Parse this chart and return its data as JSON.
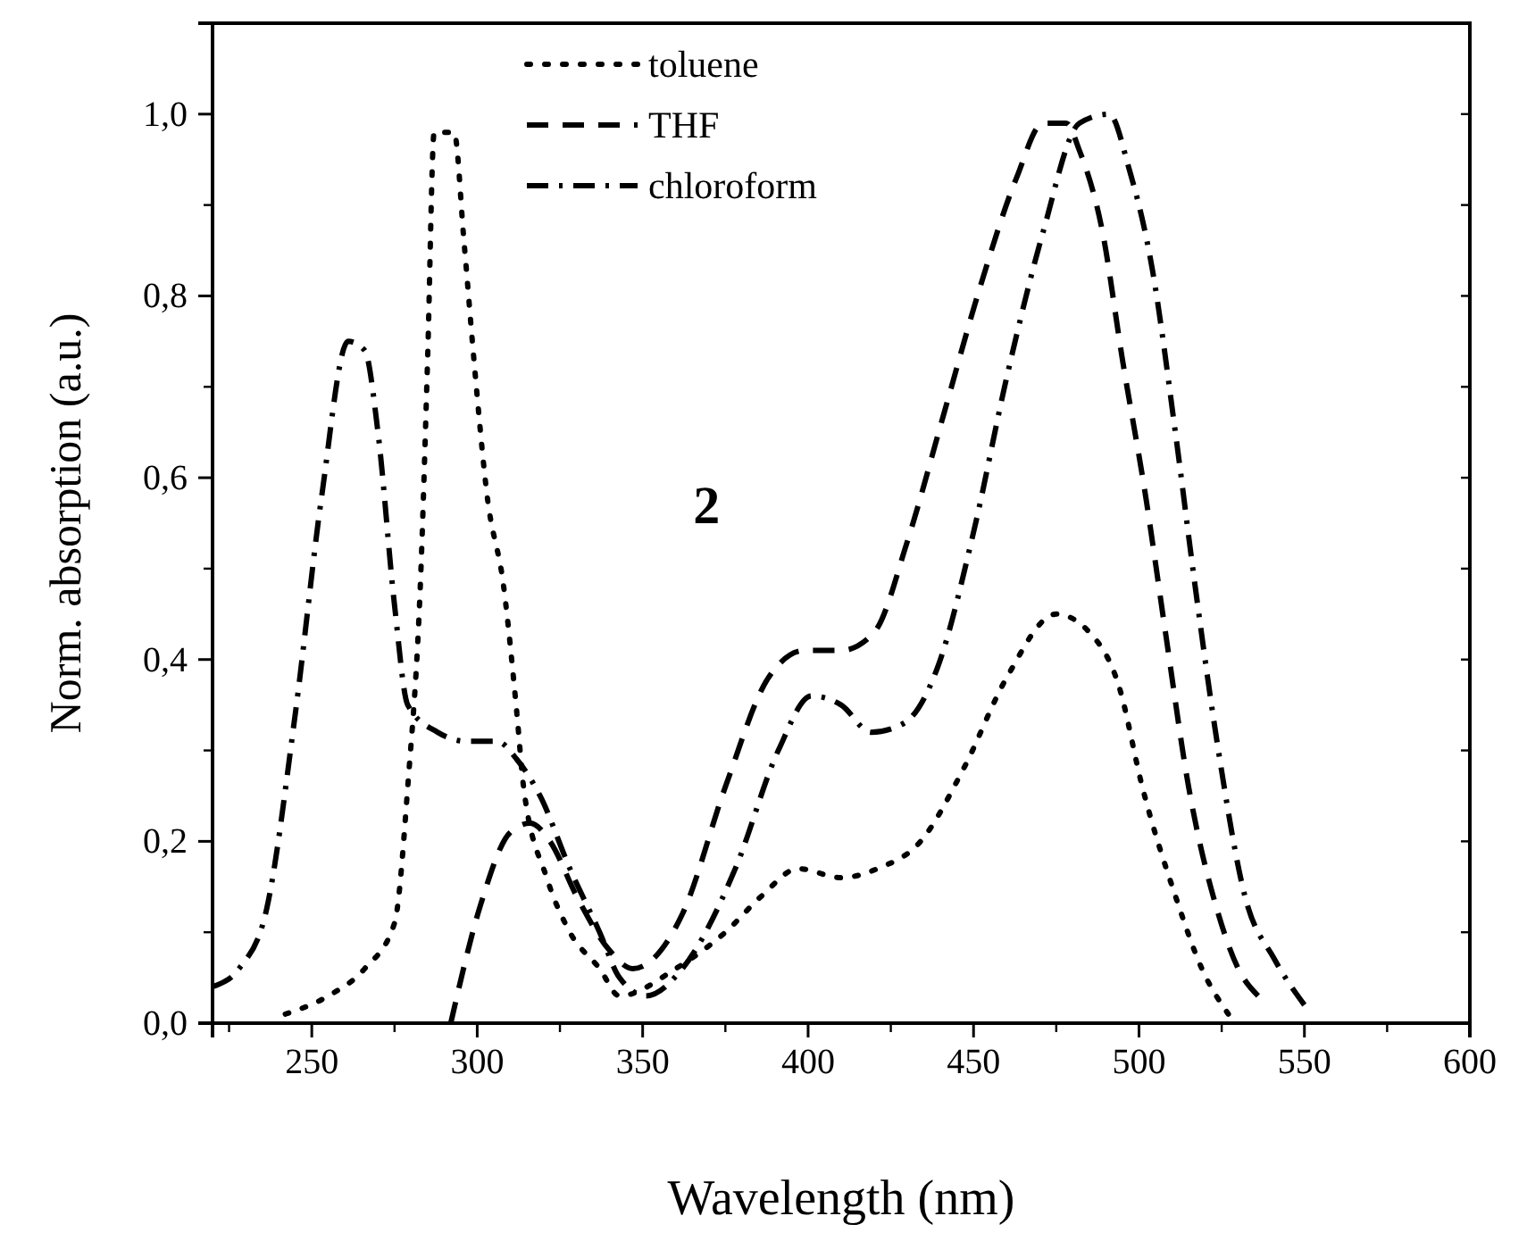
{
  "chart_data": {
    "type": "line",
    "xlabel": "Wavelength (nm)",
    "ylabel": "Norm. absorption (a.u.)",
    "xlim": [
      220,
      600
    ],
    "xticks": [
      250,
      300,
      350,
      400,
      450,
      500,
      550,
      600
    ],
    "ylim": [
      0,
      1.1
    ],
    "yticks": [
      {
        "value": 0,
        "label": "0,0"
      },
      {
        "value": 0.2,
        "label": "0,2"
      },
      {
        "value": 0.4,
        "label": "0,4"
      },
      {
        "value": 0.6,
        "label": "0,6"
      },
      {
        "value": 0.8,
        "label": "0,8"
      },
      {
        "value": 1,
        "label": "1,0"
      }
    ],
    "legend": "top left",
    "grid": false,
    "marker": "none",
    "annotations": [
      "2"
    ],
    "series": [
      {
        "name": "toluene",
        "color": "#000000",
        "line_style": "dotted",
        "x": [
          242,
          255,
          266,
          275,
          279,
          283,
          285,
          287,
          293,
          296,
          299,
          303,
          308,
          312,
          314,
          321,
          328,
          337,
          343,
          360,
          375,
          386,
          397,
          410,
          421,
          434,
          447,
          460,
          475,
          485,
          494,
          501,
          511,
          519,
          527
        ],
        "values": [
          0.01,
          0.03,
          0.06,
          0.11,
          0.26,
          0.5,
          0.73,
          0.98,
          0.98,
          0.86,
          0.73,
          0.58,
          0.48,
          0.34,
          0.26,
          0.16,
          0.1,
          0.06,
          0.03,
          0.06,
          0.1,
          0.14,
          0.17,
          0.16,
          0.17,
          0.2,
          0.28,
          0.38,
          0.45,
          0.43,
          0.37,
          0.26,
          0.14,
          0.06,
          0.01
        ]
      },
      {
        "name": "THF",
        "color": "#000000",
        "line_style": "dashed",
        "x": [
          292,
          301,
          310,
          316,
          322,
          330,
          340,
          347,
          362,
          375,
          388,
          399,
          410,
          420,
          430,
          441,
          452,
          463,
          471,
          478,
          482,
          489,
          495,
          502,
          508,
          515,
          524,
          530,
          536
        ],
        "values": [
          0,
          0.13,
          0.21,
          0.22,
          0.2,
          0.14,
          0.08,
          0.06,
          0.12,
          0.26,
          0.38,
          0.41,
          0.41,
          0.43,
          0.53,
          0.67,
          0.81,
          0.93,
          0.99,
          0.99,
          0.96,
          0.87,
          0.73,
          0.58,
          0.43,
          0.26,
          0.12,
          0.06,
          0.03
        ]
      },
      {
        "name": "chloroform",
        "color": "#000000",
        "line_style": "dashdot",
        "x": [
          220,
          228,
          236,
          245,
          253,
          261,
          266,
          270,
          275,
          279,
          288,
          297,
          306,
          312,
          319,
          328,
          337,
          343,
          351,
          362,
          378,
          391,
          401,
          410,
          419,
          429,
          439,
          450,
          460,
          471,
          482,
          491,
          497,
          504,
          511,
          517,
          524,
          532,
          541,
          550
        ],
        "values": [
          0.04,
          0.06,
          0.12,
          0.34,
          0.58,
          0.75,
          0.74,
          0.65,
          0.46,
          0.35,
          0.32,
          0.31,
          0.31,
          0.29,
          0.25,
          0.17,
          0.1,
          0.05,
          0.03,
          0.06,
          0.17,
          0.3,
          0.36,
          0.35,
          0.32,
          0.33,
          0.39,
          0.54,
          0.71,
          0.87,
          0.99,
          1,
          0.94,
          0.83,
          0.65,
          0.48,
          0.3,
          0.14,
          0.07,
          0.02
        ]
      }
    ]
  }
}
